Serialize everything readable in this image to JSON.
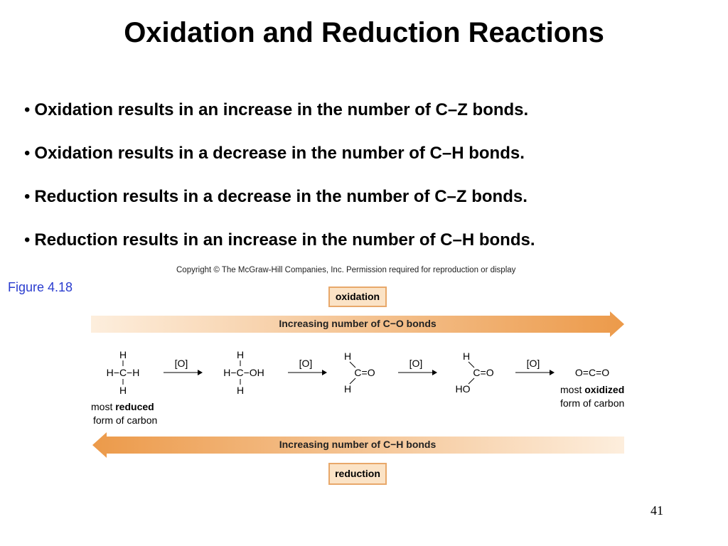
{
  "slide": {
    "title": "Oxidation and Reduction Reactions",
    "bullet_symbol": "•",
    "bullets": [
      "Oxidation results in an increase in the number of C–Z bonds.",
      "Oxidation results in a decrease in the number of C–H bonds.",
      "Reduction results in a decrease in the number of C–Z bonds.",
      "Reduction results in an increase in the number of C–H bonds."
    ],
    "figure_label": "Figure 4.18",
    "page_number": "41"
  },
  "figure": {
    "copyright": "Copyright © The McGraw-Hill Companies, Inc. Permission required for reproduction or display",
    "oxidation_box": "oxidation",
    "reduction_box": "reduction",
    "top_arrow_label": "Increasing number of C−O bonds",
    "bottom_arrow_label": "Increasing number of C−H bonds",
    "reagent": "[O]",
    "start_caption_line1_prefix": "most ",
    "start_caption_line1_bold": "reduced",
    "start_caption_line2": "form of carbon",
    "end_caption_line1_prefix": "most ",
    "end_caption_line1_bold": "oxidized",
    "end_caption_line2": "form of carbon",
    "molecules": {
      "methane": {
        "top": "H",
        "middle": "H−C−H",
        "bottom": "H"
      },
      "methanol": {
        "top": "H",
        "middle": "H−C−OH",
        "bottom": "H"
      },
      "formaldehyde": {
        "top": "H",
        "middle": "C=O",
        "bottom": "H"
      },
      "formic_acid": {
        "top": "H",
        "middle": "C=O",
        "bottom": "HO"
      },
      "carbon_dioxide": {
        "middle": "O=C=O"
      }
    },
    "colors": {
      "arrow_orange": "#ec9a4a",
      "arrow_light": "#fdeedd",
      "box_fill": "#fbe3c6",
      "box_border": "#e8a86a",
      "figure_label": "#2a3ccf"
    }
  }
}
